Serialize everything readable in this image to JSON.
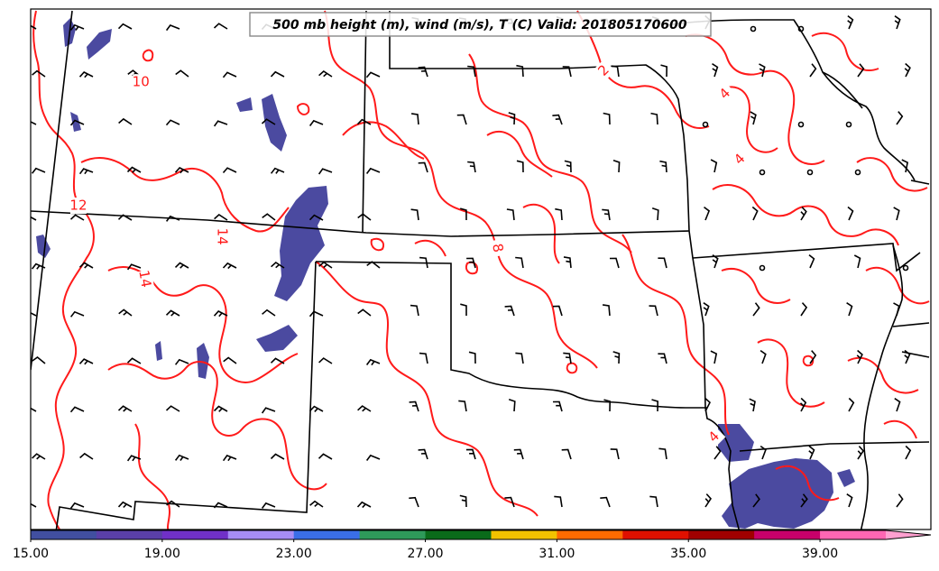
{
  "title": "500 mb height (m), wind (m/s), T (C) Valid: 201805170600",
  "contour_labels": [
    {
      "text": "10",
      "x_deg": -111.5,
      "y_deg": 40.6
    },
    {
      "text": "12",
      "x_deg": -113.2,
      "y_deg": 37.4
    },
    {
      "text": "14",
      "x_deg": -109.3,
      "y_deg": 36.6,
      "rotate": 90
    },
    {
      "text": "14",
      "x_deg": -111.4,
      "y_deg": 35.5,
      "rotate": 80
    },
    {
      "text": "8",
      "x_deg": -101.8,
      "y_deg": 36.3,
      "rotate": 80
    },
    {
      "text": "2",
      "x_deg": -98.9,
      "y_deg": 40.9,
      "rotate": -45
    },
    {
      "text": "4",
      "x_deg": -95.6,
      "y_deg": 40.3,
      "rotate": -45
    },
    {
      "text": "4",
      "x_deg": -95.2,
      "y_deg": 38.6,
      "rotate": -45
    },
    {
      "text": "4",
      "x_deg": -95.9,
      "y_deg": 31.4,
      "rotate": -45
    }
  ],
  "colorbar": {
    "tick_labels": [
      "15.00",
      "19.00",
      "23.00",
      "27.00",
      "31.00",
      "35.00",
      "39.00"
    ],
    "colors": [
      "#414fa0",
      "#5a3fa8",
      "#7030c8",
      "#a68cf5",
      "#3a6ee8",
      "#2e9a5a",
      "#0a6b1a",
      "#f2c200",
      "#ff6a00",
      "#e01000",
      "#a00000",
      "#c8006a",
      "#ff66b3",
      "#ffa0d0"
    ],
    "extend": "max"
  },
  "colors": {
    "contour": "#ff1a1a",
    "boundary": "#000000",
    "fill": "#4b4aa0"
  }
}
